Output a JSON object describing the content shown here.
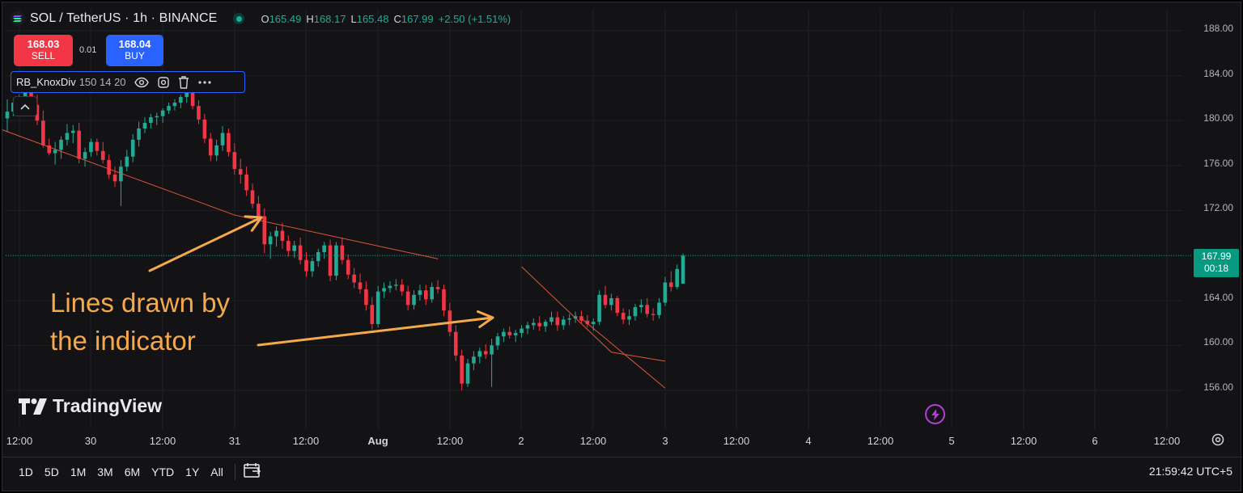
{
  "header": {
    "symbol_line": "SOL / TetherUS · 1h · BINANCE",
    "ohlc": {
      "o_label": "O",
      "o_value": "165.49",
      "h_label": "H",
      "h_value": "168.17",
      "l_label": "L",
      "l_value": "165.48",
      "c_label": "C",
      "c_value": "167.99",
      "change": "+2.50 (+1.51%)"
    }
  },
  "trade": {
    "sell_price": "168.03",
    "sell_label": "SELL",
    "spread": "0.01",
    "buy_price": "168.04",
    "buy_label": "BUY"
  },
  "indicator": {
    "name": "RB_KnoxDiv",
    "args": "150 14 20"
  },
  "price_axis": {
    "labels": [
      "188.00",
      "184.00",
      "180.00",
      "176.00",
      "172.00",
      "164.00",
      "160.00",
      "156.00"
    ],
    "current_price": "167.99",
    "countdown": "00:18"
  },
  "time_axis": {
    "labels": [
      "12:00",
      "30",
      "12:00",
      "31",
      "12:00",
      "Aug",
      "12:00",
      "2",
      "12:00",
      "3",
      "12:00",
      "4",
      "12:00",
      "5",
      "12:00",
      "6",
      "12:00"
    ]
  },
  "bottom_bar": {
    "ranges": [
      "1D",
      "5D",
      "1M",
      "3M",
      "6M",
      "YTD",
      "1Y",
      "All"
    ],
    "clock": "21:59:42 UTC+5"
  },
  "annotation": {
    "line1": "Lines drawn by",
    "line2": "the indicator"
  },
  "watermark": "TradingView",
  "colors": {
    "up": "#22ab94",
    "down": "#f23645",
    "indicator_line": "#e0553a",
    "annotation": "#f6a94b",
    "buy": "#2962ff",
    "current_price_bg": "#089981"
  },
  "chart_data": {
    "type": "candlestick",
    "symbol": "SOL / TetherUS",
    "interval": "1h",
    "exchange": "BINANCE",
    "ylim": [
      153,
      189.5
    ],
    "ohlc": [
      [
        180.2,
        181.9,
        179.0,
        180.8
      ],
      [
        180.8,
        182.0,
        180.4,
        181.6
      ],
      [
        181.6,
        182.3,
        181.0,
        181.6
      ],
      [
        181.6,
        183.4,
        180.6,
        182.9
      ],
      [
        182.9,
        184.0,
        181.3,
        181.4
      ],
      [
        181.4,
        182.3,
        179.6,
        180.0
      ],
      [
        180.0,
        180.9,
        177.6,
        177.8
      ],
      [
        177.8,
        178.4,
        176.9,
        177.1
      ],
      [
        177.1,
        178.1,
        176.1,
        177.4
      ],
      [
        177.4,
        178.6,
        176.6,
        178.3
      ],
      [
        178.3,
        179.7,
        177.8,
        178.9
      ],
      [
        178.9,
        179.6,
        178.0,
        179.1
      ],
      [
        179.1,
        179.8,
        176.2,
        176.6
      ],
      [
        176.6,
        177.6,
        175.9,
        177.2
      ],
      [
        177.2,
        178.4,
        176.8,
        178.1
      ],
      [
        178.1,
        178.4,
        176.9,
        177.3
      ],
      [
        177.3,
        178.1,
        176.2,
        176.5
      ],
      [
        176.5,
        177.0,
        174.8,
        175.2
      ],
      [
        175.2,
        175.9,
        174.1,
        174.6
      ],
      [
        174.6,
        176.5,
        172.4,
        175.9
      ],
      [
        175.9,
        177.4,
        175.5,
        176.8
      ],
      [
        176.8,
        178.8,
        176.3,
        178.3
      ],
      [
        178.3,
        179.9,
        177.7,
        179.3
      ],
      [
        179.3,
        180.3,
        178.9,
        179.8
      ],
      [
        179.8,
        180.6,
        179.3,
        180.3
      ],
      [
        180.3,
        180.7,
        179.6,
        180.4
      ],
      [
        180.4,
        181.1,
        179.8,
        180.9
      ],
      [
        180.9,
        181.6,
        180.6,
        181.3
      ],
      [
        181.3,
        181.9,
        180.9,
        181.6
      ],
      [
        181.6,
        182.3,
        181.1,
        182.1
      ],
      [
        182.1,
        182.7,
        181.6,
        182.5
      ],
      [
        182.5,
        182.8,
        181.0,
        181.3
      ],
      [
        181.3,
        181.8,
        179.7,
        180.1
      ],
      [
        180.1,
        180.6,
        178.0,
        178.4
      ],
      [
        178.4,
        178.9,
        176.4,
        176.9
      ],
      [
        176.9,
        178.3,
        176.4,
        177.8
      ],
      [
        177.8,
        179.5,
        177.3,
        178.9
      ],
      [
        178.9,
        179.3,
        176.8,
        177.2
      ],
      [
        177.2,
        178.0,
        175.2,
        175.7
      ],
      [
        175.7,
        176.6,
        174.4,
        175.2
      ],
      [
        175.2,
        175.9,
        173.3,
        173.8
      ],
      [
        173.8,
        174.4,
        172.2,
        172.6
      ],
      [
        172.6,
        173.3,
        171.1,
        171.5
      ],
      [
        171.5,
        172.2,
        168.2,
        169.0
      ],
      [
        169.0,
        170.1,
        167.7,
        169.7
      ],
      [
        169.7,
        170.6,
        168.8,
        170.2
      ],
      [
        170.2,
        170.9,
        168.6,
        169.3
      ],
      [
        169.3,
        169.8,
        167.9,
        168.4
      ],
      [
        168.4,
        169.3,
        167.8,
        168.9
      ],
      [
        168.9,
        169.6,
        167.2,
        167.6
      ],
      [
        167.6,
        168.3,
        166.1,
        166.6
      ],
      [
        166.6,
        167.8,
        166.1,
        167.5
      ],
      [
        167.5,
        168.6,
        167.0,
        168.3
      ],
      [
        168.3,
        169.2,
        167.7,
        168.9
      ],
      [
        168.9,
        169.4,
        165.7,
        166.2
      ],
      [
        166.2,
        169.2,
        165.8,
        168.9
      ],
      [
        168.9,
        169.6,
        167.2,
        167.6
      ],
      [
        167.6,
        168.1,
        165.9,
        166.3
      ],
      [
        166.3,
        166.9,
        165.1,
        165.6
      ],
      [
        165.6,
        166.4,
        164.6,
        165.0
      ],
      [
        165.0,
        165.7,
        163.1,
        163.6
      ],
      [
        163.6,
        164.3,
        161.4,
        161.9
      ],
      [
        161.9,
        165.3,
        161.6,
        164.8
      ],
      [
        164.8,
        165.6,
        164.2,
        165.1
      ],
      [
        165.1,
        165.7,
        164.7,
        165.3
      ],
      [
        165.3,
        165.9,
        164.9,
        165.4
      ],
      [
        165.4,
        165.9,
        164.4,
        164.8
      ],
      [
        164.8,
        165.3,
        163.1,
        163.6
      ],
      [
        163.6,
        164.9,
        163.2,
        164.5
      ],
      [
        164.5,
        165.4,
        164.0,
        164.9
      ],
      [
        164.9,
        165.4,
        163.6,
        164.1
      ],
      [
        164.1,
        165.6,
        163.8,
        165.2
      ],
      [
        165.2,
        165.8,
        164.6,
        165.0
      ],
      [
        165.0,
        165.4,
        162.6,
        163.1
      ],
      [
        163.1,
        163.8,
        160.8,
        161.2
      ],
      [
        161.2,
        161.8,
        158.6,
        159.1
      ],
      [
        159.1,
        159.6,
        156.0,
        156.6
      ],
      [
        156.6,
        158.8,
        156.3,
        158.4
      ],
      [
        158.4,
        159.5,
        157.8,
        159.0
      ],
      [
        159.0,
        159.8,
        158.4,
        159.5
      ],
      [
        159.5,
        160.1,
        158.8,
        159.2
      ],
      [
        159.2,
        160.6,
        156.3,
        160.0
      ],
      [
        160.0,
        161.1,
        159.6,
        160.8
      ],
      [
        160.8,
        161.5,
        160.3,
        161.2
      ],
      [
        161.2,
        161.7,
        160.6,
        160.9
      ],
      [
        160.9,
        161.4,
        160.3,
        161.1
      ],
      [
        161.1,
        161.8,
        160.7,
        161.5
      ],
      [
        161.5,
        162.1,
        161.0,
        161.8
      ],
      [
        161.8,
        162.4,
        161.4,
        162.0
      ],
      [
        162.0,
        162.6,
        161.3,
        161.7
      ],
      [
        161.7,
        162.3,
        161.2,
        162.1
      ],
      [
        162.1,
        163.0,
        161.8,
        162.5
      ],
      [
        162.5,
        163.0,
        161.3,
        161.8
      ],
      [
        161.8,
        162.6,
        161.4,
        162.3
      ],
      [
        162.3,
        162.8,
        161.8,
        162.4
      ],
      [
        162.4,
        163.0,
        162.0,
        162.6
      ],
      [
        162.6,
        163.1,
        161.9,
        162.2
      ],
      [
        162.2,
        162.7,
        161.6,
        161.9
      ],
      [
        161.9,
        162.4,
        161.3,
        162.1
      ],
      [
        162.1,
        164.9,
        161.8,
        164.5
      ],
      [
        164.5,
        165.3,
        163.3,
        163.6
      ],
      [
        163.6,
        164.6,
        163.1,
        164.2
      ],
      [
        164.2,
        164.4,
        162.6,
        162.9
      ],
      [
        162.9,
        163.3,
        161.9,
        162.3
      ],
      [
        162.3,
        163.2,
        161.8,
        162.6
      ],
      [
        162.6,
        163.7,
        162.2,
        163.4
      ],
      [
        163.4,
        164.1,
        162.9,
        163.6
      ],
      [
        163.6,
        164.2,
        162.5,
        162.8
      ],
      [
        162.8,
        163.3,
        162.2,
        162.7
      ],
      [
        162.7,
        164.2,
        162.4,
        163.8
      ],
      [
        163.8,
        166.1,
        163.5,
        165.6
      ],
      [
        165.6,
        166.6,
        164.8,
        165.2
      ],
      [
        165.2,
        167.2,
        165.0,
        166.8
      ],
      [
        165.49,
        168.17,
        165.48,
        167.99
      ]
    ],
    "indicator_lines": [
      {
        "from": [
          "29 06:00",
          179.8
        ],
        "to": [
          "31 00:00",
          171.6
        ]
      },
      {
        "from": [
          "31 00:00",
          171.6
        ],
        "to": [
          "Aug 1 10:00",
          167.7
        ]
      },
      {
        "from": [
          "Aug 2 00:00",
          167.0
        ],
        "to": [
          "Aug 2 15:00",
          159.4
        ]
      },
      {
        "from": [
          "Aug 2 15:00",
          159.4
        ],
        "to": [
          "Aug 3 00:00",
          158.6
        ]
      },
      {
        "from": [
          "Aug 2 10:00",
          162.4
        ],
        "to": [
          "Aug 3 00:00",
          156.2
        ]
      }
    ]
  }
}
